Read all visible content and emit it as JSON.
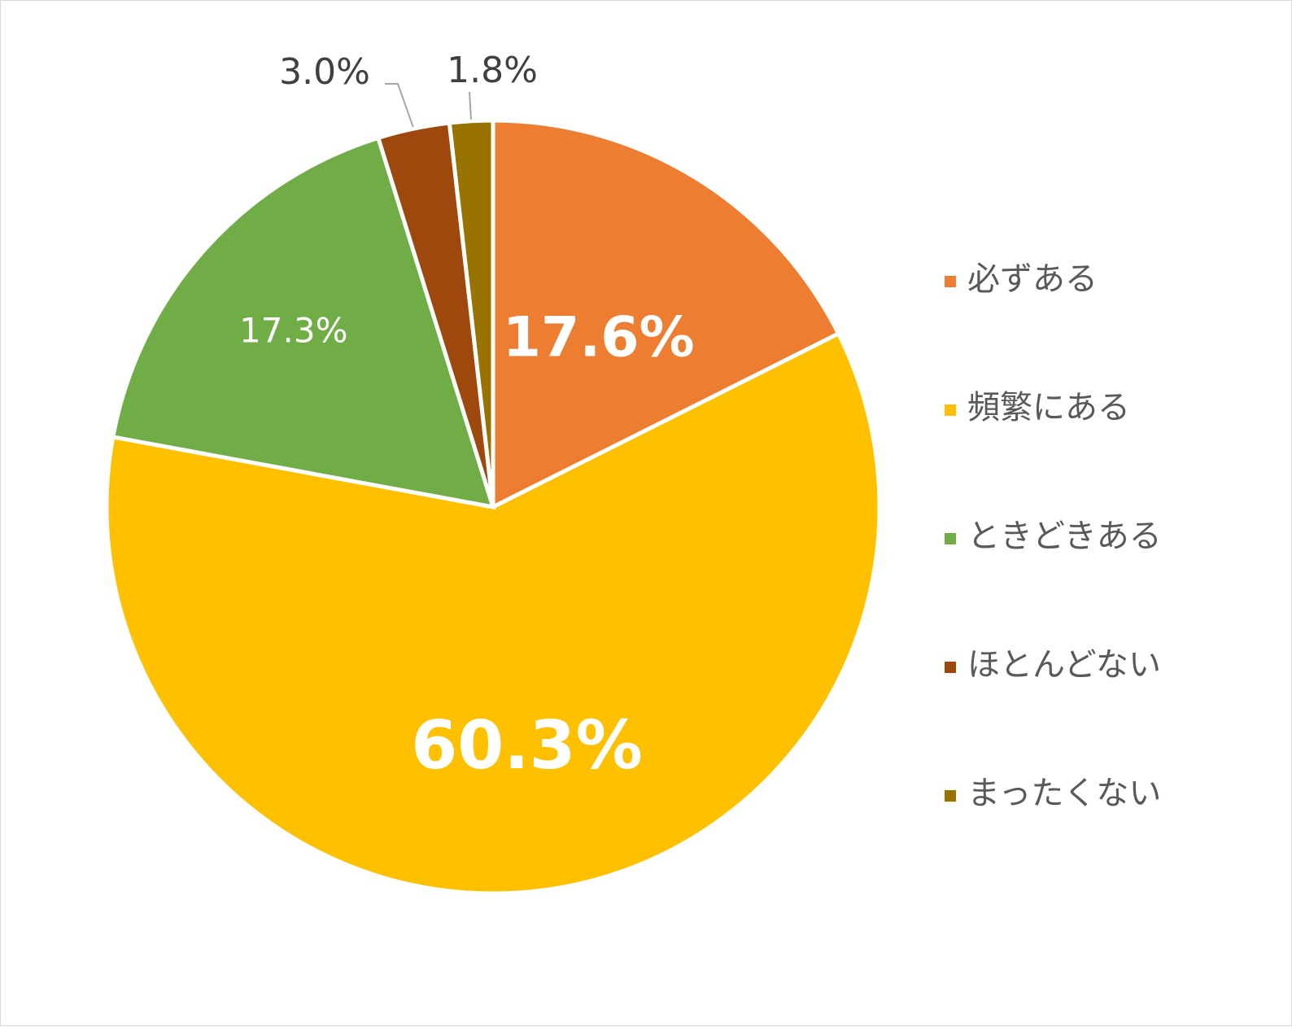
{
  "chart_data": {
    "type": "pie",
    "title": "",
    "categories": [
      "必ずある",
      "頻繁にある",
      "ときどきある",
      "ほとんどない",
      "まったくない"
    ],
    "values": [
      17.6,
      60.3,
      17.3,
      3.0,
      1.8
    ],
    "data_labels": [
      "17.6%",
      "60.3%",
      "17.3%",
      "3.0%",
      "1.8%"
    ],
    "colors": [
      "#ED7D31",
      "#FFC000",
      "#70AD47",
      "#9E480E",
      "#997300"
    ],
    "start_angle_deg": 0,
    "direction": "clockwise",
    "legend_position": "right",
    "label_styles": [
      "inside-large",
      "inside-large",
      "inside-small",
      "outside-leader",
      "outside-leader"
    ]
  }
}
